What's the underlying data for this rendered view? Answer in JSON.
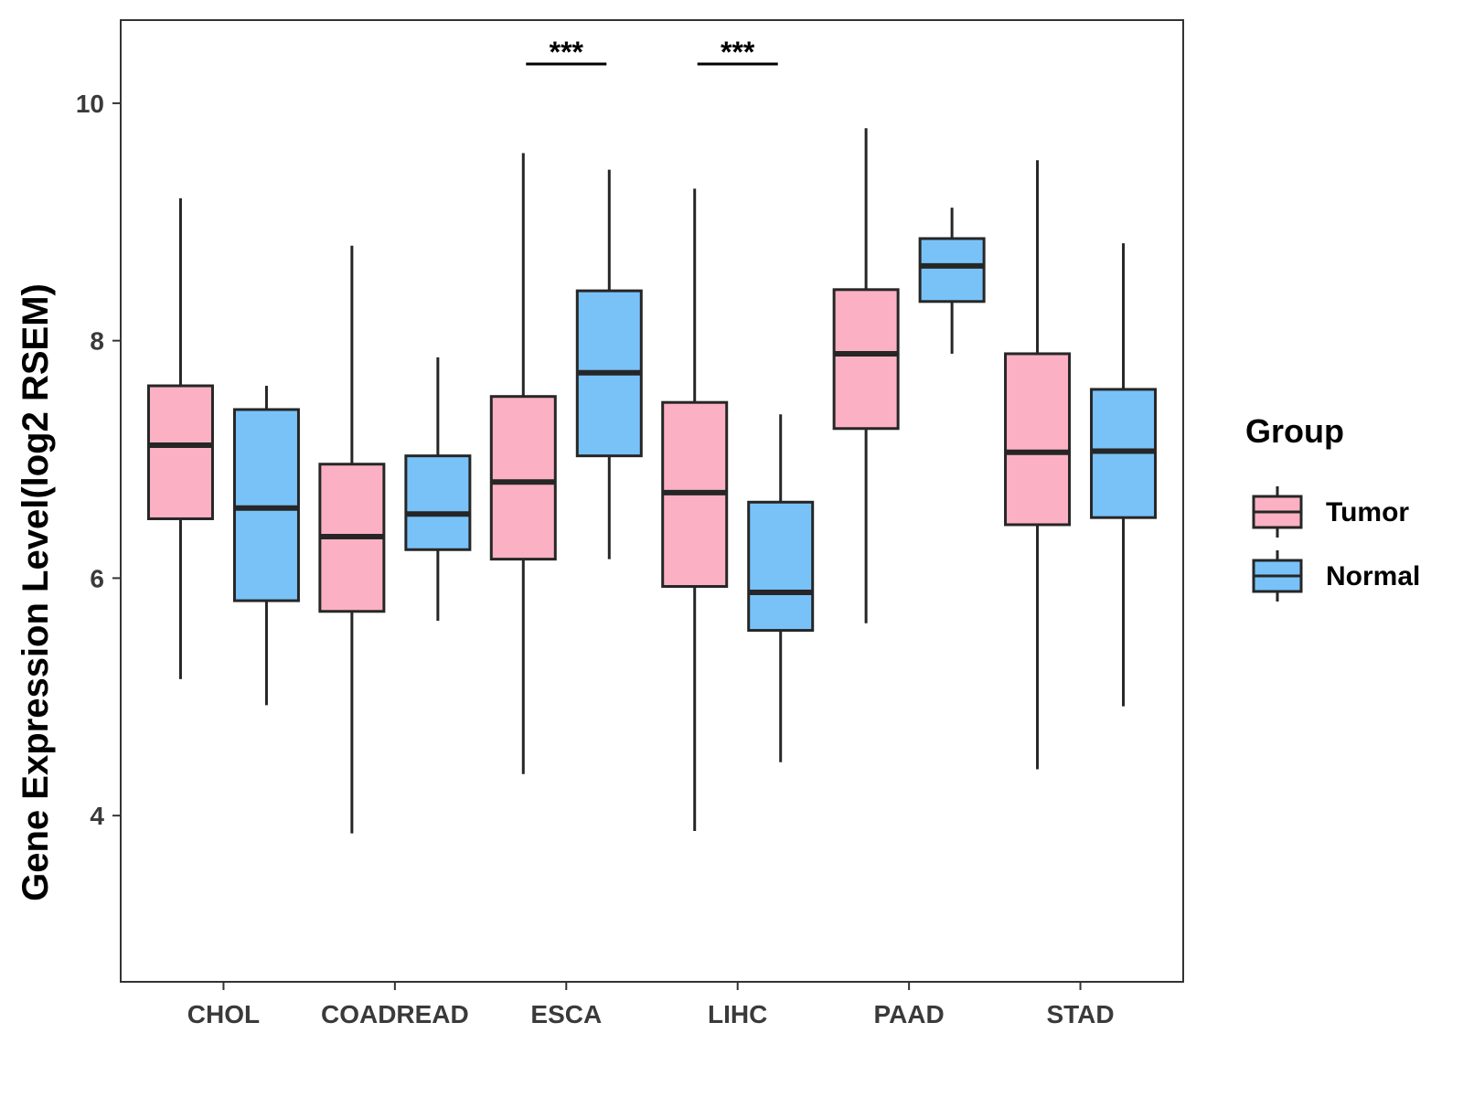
{
  "chart_data": {
    "type": "boxplot",
    "title": "",
    "xlabel": "",
    "ylabel": "Gene Expression Level(log2 RSEM)",
    "ylim": [
      2.6,
      10.7
    ],
    "yticks": [
      4,
      6,
      8,
      10
    ],
    "ytick_labels": [
      "4",
      "6",
      "8",
      "10"
    ],
    "grid": false,
    "categories": [
      "CHOL",
      "COADREAD",
      "ESCA",
      "LIHC",
      "PAAD",
      "STAD"
    ],
    "series": [
      {
        "name": "Tumor",
        "color": "#FBB1C3",
        "boxes": [
          {
            "min": 5.15,
            "q1": 6.5,
            "median": 7.12,
            "q3": 7.62,
            "max": 9.2
          },
          {
            "min": 3.85,
            "q1": 5.72,
            "median": 6.35,
            "q3": 6.96,
            "max": 8.8
          },
          {
            "min": 4.35,
            "q1": 6.16,
            "median": 6.81,
            "q3": 7.53,
            "max": 9.58
          },
          {
            "min": 3.87,
            "q1": 5.93,
            "median": 6.72,
            "q3": 7.48,
            "max": 9.28
          },
          {
            "min": 5.62,
            "q1": 7.26,
            "median": 7.89,
            "q3": 8.43,
            "max": 9.79
          },
          {
            "min": 4.39,
            "q1": 6.45,
            "median": 7.06,
            "q3": 7.89,
            "max": 9.52
          }
        ]
      },
      {
        "name": "Normal",
        "color": "#78C2F8",
        "boxes": [
          {
            "min": 4.93,
            "q1": 5.81,
            "median": 6.59,
            "q3": 7.42,
            "max": 7.62
          },
          {
            "min": 5.64,
            "q1": 6.24,
            "median": 6.54,
            "q3": 7.03,
            "max": 7.86
          },
          {
            "min": 6.16,
            "q1": 7.03,
            "median": 7.73,
            "q3": 8.42,
            "max": 9.44
          },
          {
            "min": 4.45,
            "q1": 5.56,
            "median": 5.88,
            "q3": 6.64,
            "max": 7.38
          },
          {
            "min": 7.89,
            "q1": 8.33,
            "median": 8.63,
            "q3": 8.86,
            "max": 9.12
          },
          {
            "min": 4.92,
            "q1": 6.51,
            "median": 7.07,
            "q3": 7.59,
            "max": 8.82
          }
        ]
      }
    ],
    "significance": [
      {
        "category": "ESCA",
        "label": "***"
      },
      {
        "category": "LIHC",
        "label": "***"
      }
    ],
    "legend": {
      "title": "Group",
      "position": "right",
      "entries": [
        "Tumor",
        "Normal"
      ]
    }
  }
}
